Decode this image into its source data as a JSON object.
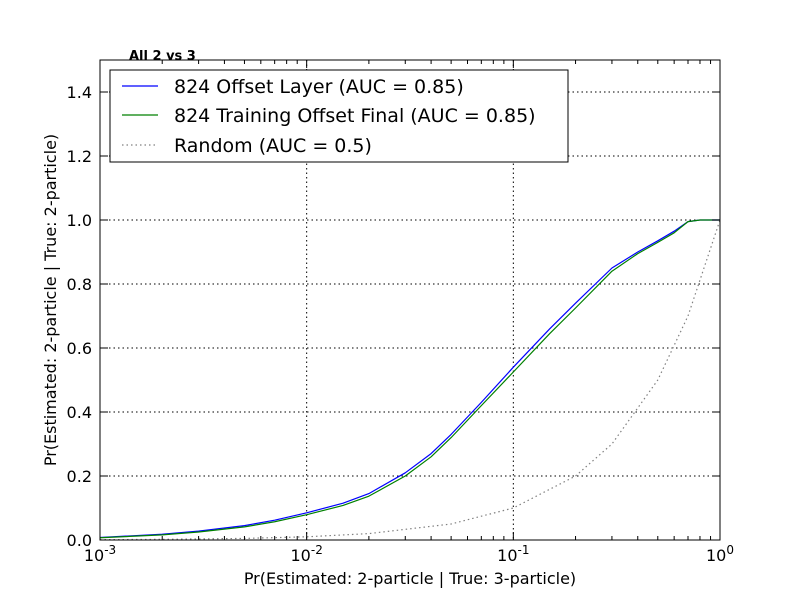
{
  "chart_data": {
    "type": "line",
    "title": "All 2 vs 3",
    "xlabel": "Pr(Estimated: 2-particle | True: 3-particle)",
    "ylabel": "Pr(Estimated: 2-particle | True: 2-particle)",
    "xscale": "log",
    "xlim": [
      0.001,
      1
    ],
    "ylim": [
      0,
      1.5
    ],
    "grid": true,
    "legend_position": "top-left",
    "x_ticks": [
      {
        "value": 0.001,
        "base": "10",
        "exp": "-3"
      },
      {
        "value": 0.01,
        "base": "10",
        "exp": "-2"
      },
      {
        "value": 0.1,
        "base": "10",
        "exp": "-1"
      },
      {
        "value": 1,
        "base": "10",
        "exp": "0"
      }
    ],
    "y_ticks": [
      {
        "value": 0.0,
        "label": "0.0"
      },
      {
        "value": 0.2,
        "label": "0.2"
      },
      {
        "value": 0.4,
        "label": "0.4"
      },
      {
        "value": 0.6,
        "label": "0.6"
      },
      {
        "value": 0.8,
        "label": "0.8"
      },
      {
        "value": 1.0,
        "label": "1.0"
      },
      {
        "value": 1.2,
        "label": "1.2"
      },
      {
        "value": 1.4,
        "label": "1.4"
      }
    ],
    "series": [
      {
        "name": "824 Offset Layer (AUC = 0.85)",
        "color": "#0000ff",
        "style": "solid",
        "points": [
          [
            0.001,
            0.008
          ],
          [
            0.002,
            0.018
          ],
          [
            0.003,
            0.028
          ],
          [
            0.005,
            0.045
          ],
          [
            0.007,
            0.062
          ],
          [
            0.01,
            0.085
          ],
          [
            0.015,
            0.115
          ],
          [
            0.02,
            0.145
          ],
          [
            0.03,
            0.21
          ],
          [
            0.04,
            0.27
          ],
          [
            0.05,
            0.33
          ],
          [
            0.07,
            0.43
          ],
          [
            0.1,
            0.54
          ],
          [
            0.15,
            0.66
          ],
          [
            0.2,
            0.74
          ],
          [
            0.3,
            0.85
          ],
          [
            0.4,
            0.9
          ],
          [
            0.5,
            0.935
          ],
          [
            0.6,
            0.965
          ],
          [
            0.7,
            0.995
          ],
          [
            0.8,
            1.0
          ],
          [
            1.0,
            1.0
          ]
        ]
      },
      {
        "name": "824 Training Offset Final (AUC = 0.85)",
        "color": "#008000",
        "style": "solid",
        "points": [
          [
            0.001,
            0.007
          ],
          [
            0.002,
            0.016
          ],
          [
            0.003,
            0.025
          ],
          [
            0.005,
            0.041
          ],
          [
            0.007,
            0.057
          ],
          [
            0.01,
            0.079
          ],
          [
            0.015,
            0.108
          ],
          [
            0.02,
            0.137
          ],
          [
            0.03,
            0.2
          ],
          [
            0.04,
            0.26
          ],
          [
            0.05,
            0.32
          ],
          [
            0.07,
            0.42
          ],
          [
            0.1,
            0.525
          ],
          [
            0.15,
            0.645
          ],
          [
            0.2,
            0.725
          ],
          [
            0.3,
            0.84
          ],
          [
            0.4,
            0.895
          ],
          [
            0.5,
            0.93
          ],
          [
            0.6,
            0.96
          ],
          [
            0.7,
            0.995
          ],
          [
            0.8,
            1.0
          ],
          [
            1.0,
            1.0
          ]
        ]
      },
      {
        "name": "Random (AUC = 0.5)",
        "color": "#808080",
        "style": "dotted",
        "points": [
          [
            0.001,
            0.001
          ],
          [
            0.002,
            0.002
          ],
          [
            0.005,
            0.005
          ],
          [
            0.01,
            0.01
          ],
          [
            0.02,
            0.02
          ],
          [
            0.05,
            0.05
          ],
          [
            0.1,
            0.1
          ],
          [
            0.2,
            0.2
          ],
          [
            0.3,
            0.3
          ],
          [
            0.5,
            0.5
          ],
          [
            0.7,
            0.7
          ],
          [
            1.0,
            1.0
          ]
        ]
      }
    ]
  }
}
